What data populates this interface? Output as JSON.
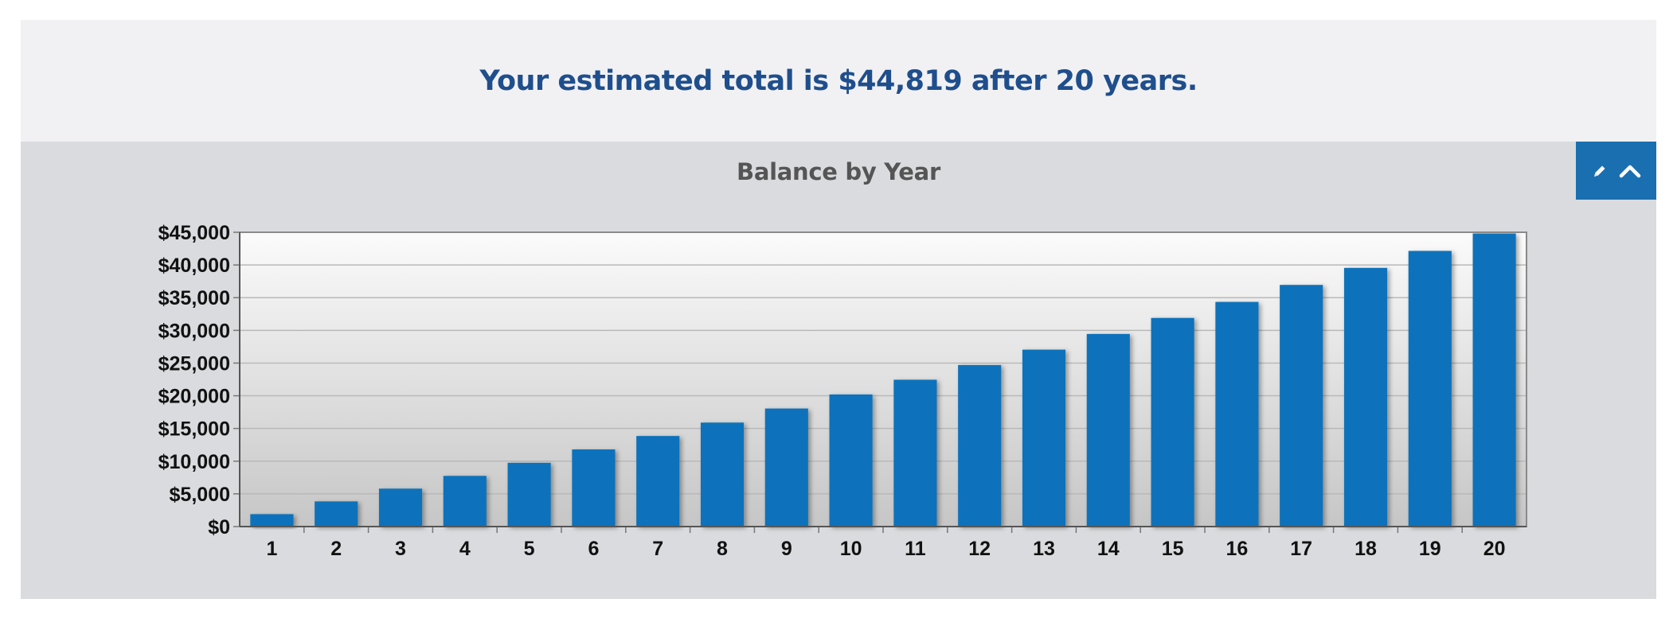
{
  "summary": {
    "prefix": "Your estimated total is ",
    "amount": "$44,819",
    "suffix": " after 20 years."
  },
  "colors": {
    "summary_text": "#1f4e8c",
    "title_text": "#555555",
    "bar": "#0d72bb",
    "tool_button_bg": "#1a6fb0",
    "card_bg": "#d9dbde",
    "summary_bg": "#f1f1f3"
  },
  "toolbar": {
    "edit_icon": "pencil-icon",
    "collapse_icon": "chevron-up-icon"
  },
  "chart_data": {
    "type": "bar",
    "title": "Balance by Year",
    "xlabel": "",
    "ylabel": "",
    "categories": [
      "1",
      "2",
      "3",
      "4",
      "5",
      "6",
      "7",
      "8",
      "9",
      "10",
      "11",
      "12",
      "13",
      "14",
      "15",
      "16",
      "17",
      "18",
      "19",
      "20"
    ],
    "values": [
      1900,
      3850,
      5800,
      7750,
      9750,
      11800,
      13850,
      15900,
      18050,
      20200,
      22450,
      24700,
      27050,
      29450,
      31900,
      34350,
      36950,
      39550,
      42150,
      44819
    ],
    "ylim": [
      0,
      45000
    ],
    "yticks": [
      0,
      5000,
      10000,
      15000,
      20000,
      25000,
      30000,
      35000,
      40000,
      45000
    ],
    "ytick_labels": [
      "$0",
      "$5,000",
      "$10,000",
      "$15,000",
      "$20,000",
      "$25,000",
      "$30,000",
      "$35,000",
      "$40,000",
      "$45,000"
    ],
    "grid": true,
    "legend": "none"
  }
}
